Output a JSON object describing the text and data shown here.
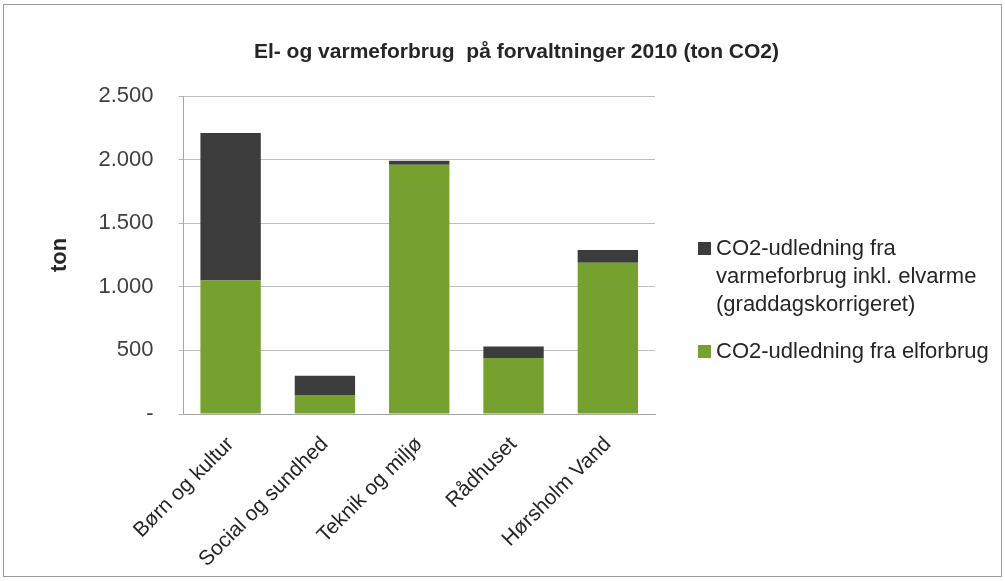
{
  "chart_data": {
    "type": "bar",
    "title": "El- og varmeforbrug  på forvaltninger 2010 (ton CO2)",
    "ylabel": "ton",
    "categories": [
      "Børn og kultur",
      "Social og sundhed",
      "Teknik og miljø",
      "Rådhuset",
      "Hørsholm Vand"
    ],
    "stacked": true,
    "series": [
      {
        "name": "CO2-udledning fra elforbrug",
        "color": "#76a12e",
        "values": [
          1050,
          150,
          1960,
          440,
          1190
        ]
      },
      {
        "name": "CO2-udledning fra varmeforbrug inkl. elvarme (graddagskorrigeret)",
        "color": "#3c3c3c",
        "values": [
          1160,
          150,
          30,
          90,
          100
        ]
      }
    ],
    "ylim": [
      0,
      2500
    ],
    "yticks": [
      {
        "value": 0,
        "label": "-"
      },
      500,
      {
        "value": 1000,
        "label": "1.000"
      },
      {
        "value": 1500,
        "label": "1.500"
      },
      {
        "value": 2000,
        "label": "2.000"
      },
      {
        "value": 2500,
        "label": "2.500"
      }
    ],
    "grid": "y",
    "legend": "right"
  }
}
